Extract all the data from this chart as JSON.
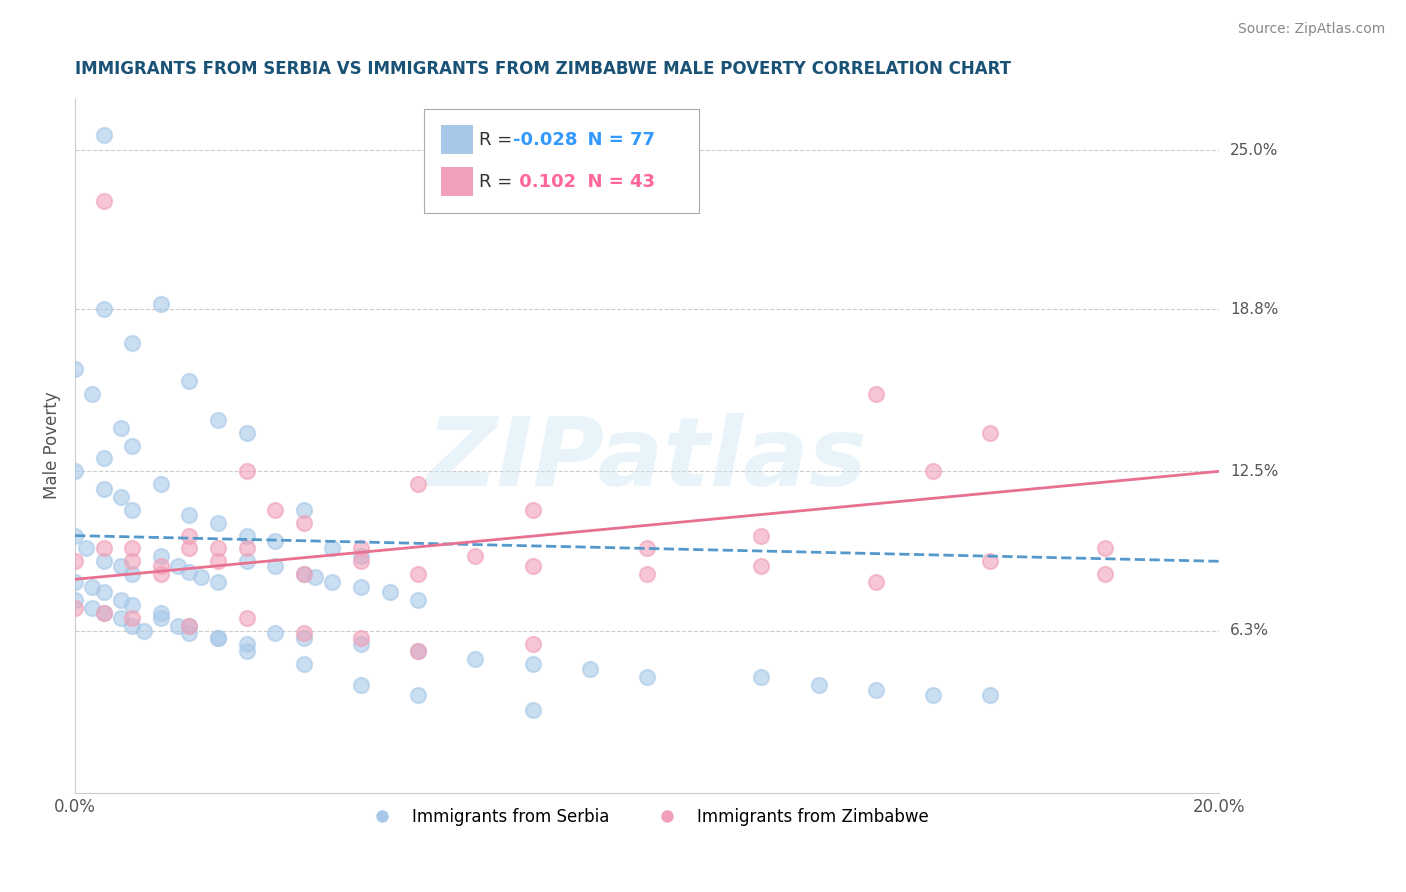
{
  "title": "IMMIGRANTS FROM SERBIA VS IMMIGRANTS FROM ZIMBABWE MALE POVERTY CORRELATION CHART",
  "source": "Source: ZipAtlas.com",
  "ylabel": "Male Poverty",
  "xlim": [
    0.0,
    0.2
  ],
  "ylim": [
    0.0,
    0.27
  ],
  "yticks": [
    0.063,
    0.125,
    0.188,
    0.25
  ],
  "ytick_labels": [
    "6.3%",
    "12.5%",
    "18.8%",
    "25.0%"
  ],
  "serbia_color": "#a8c8e8",
  "zimbabwe_color": "#f0a0b8",
  "serbia_R": -0.028,
  "serbia_N": 77,
  "zimbabwe_R": 0.102,
  "zimbabwe_N": 43,
  "serbia_line_y_start": 0.1,
  "serbia_line_y_end": 0.09,
  "zimbabwe_line_y_start": 0.083,
  "zimbabwe_line_y_end": 0.125,
  "serbia_scatter_x": [
    0.005,
    0.01,
    0.015,
    0.0,
    0.008,
    0.003,
    0.005,
    0.01,
    0.02,
    0.025,
    0.03,
    0.005,
    0.0,
    0.005,
    0.008,
    0.01,
    0.015,
    0.02,
    0.025,
    0.03,
    0.035,
    0.04,
    0.045,
    0.05,
    0.0,
    0.002,
    0.005,
    0.008,
    0.01,
    0.015,
    0.018,
    0.02,
    0.022,
    0.025,
    0.03,
    0.035,
    0.04,
    0.042,
    0.045,
    0.05,
    0.055,
    0.06,
    0.0,
    0.003,
    0.005,
    0.008,
    0.01,
    0.012,
    0.015,
    0.018,
    0.02,
    0.025,
    0.03,
    0.035,
    0.04,
    0.05,
    0.06,
    0.07,
    0.08,
    0.09,
    0.1,
    0.12,
    0.13,
    0.14,
    0.15,
    0.16,
    0.0,
    0.003,
    0.005,
    0.008,
    0.01,
    0.015,
    0.02,
    0.025,
    0.03,
    0.04,
    0.05,
    0.06,
    0.08
  ],
  "serbia_scatter_y": [
    0.256,
    0.135,
    0.19,
    0.165,
    0.142,
    0.155,
    0.188,
    0.175,
    0.16,
    0.145,
    0.14,
    0.13,
    0.125,
    0.118,
    0.115,
    0.11,
    0.12,
    0.108,
    0.105,
    0.1,
    0.098,
    0.11,
    0.095,
    0.092,
    0.1,
    0.095,
    0.09,
    0.088,
    0.085,
    0.092,
    0.088,
    0.086,
    0.084,
    0.082,
    0.09,
    0.088,
    0.085,
    0.084,
    0.082,
    0.08,
    0.078,
    0.075,
    0.075,
    0.072,
    0.07,
    0.068,
    0.065,
    0.063,
    0.068,
    0.065,
    0.062,
    0.06,
    0.058,
    0.062,
    0.06,
    0.058,
    0.055,
    0.052,
    0.05,
    0.048,
    0.045,
    0.045,
    0.042,
    0.04,
    0.038,
    0.038,
    0.082,
    0.08,
    0.078,
    0.075,
    0.073,
    0.07,
    0.065,
    0.06,
    0.055,
    0.05,
    0.042,
    0.038,
    0.032
  ],
  "zimbabwe_scatter_x": [
    0.0,
    0.005,
    0.01,
    0.015,
    0.02,
    0.025,
    0.03,
    0.035,
    0.04,
    0.05,
    0.06,
    0.08,
    0.1,
    0.12,
    0.14,
    0.16,
    0.18,
    0.005,
    0.01,
    0.015,
    0.02,
    0.025,
    0.03,
    0.04,
    0.05,
    0.06,
    0.07,
    0.08,
    0.1,
    0.12,
    0.14,
    0.16,
    0.18,
    0.0,
    0.005,
    0.01,
    0.02,
    0.03,
    0.04,
    0.05,
    0.06,
    0.08,
    0.15
  ],
  "zimbabwe_scatter_y": [
    0.09,
    0.23,
    0.095,
    0.085,
    0.1,
    0.095,
    0.125,
    0.11,
    0.105,
    0.095,
    0.12,
    0.11,
    0.095,
    0.1,
    0.155,
    0.14,
    0.095,
    0.095,
    0.09,
    0.088,
    0.095,
    0.09,
    0.095,
    0.085,
    0.09,
    0.085,
    0.092,
    0.088,
    0.085,
    0.088,
    0.082,
    0.09,
    0.085,
    0.072,
    0.07,
    0.068,
    0.065,
    0.068,
    0.062,
    0.06,
    0.055,
    0.058,
    0.125
  ],
  "watermark_text": "ZIPatlas",
  "title_color": "#1a5276",
  "axis_label_color": "#555555",
  "grid_color": "#cccccc",
  "right_label_color": "#555555",
  "serbia_R_color": "#3399ff",
  "zimbabwe_R_color": "#ff6699"
}
